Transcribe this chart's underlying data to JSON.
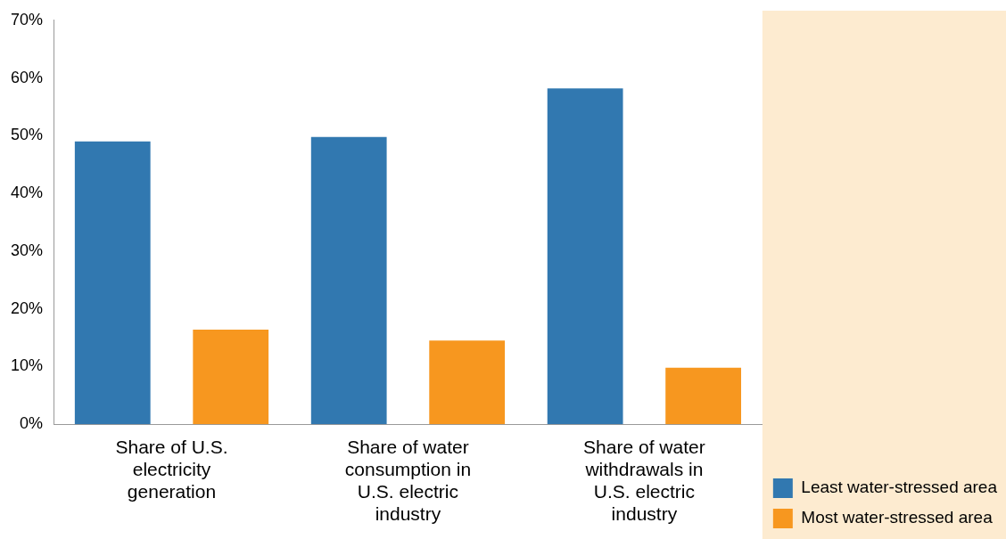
{
  "chart_data": {
    "type": "bar",
    "categories": [
      "Share of U.S. electricity generation",
      "Share of water consumption in U.S. electric industry",
      "Share of water withdrawals in U.S. electric industry"
    ],
    "series": [
      {
        "name": "Least water-stressed area",
        "color": "#3178b0",
        "values": [
          49,
          49.8,
          58.2
        ]
      },
      {
        "name": "Most water-stressed area",
        "color": "#f7971f",
        "values": [
          16.4,
          14.5,
          9.8
        ]
      }
    ],
    "ylim": [
      0,
      70
    ],
    "yticks": [
      {
        "value": 0,
        "label": "0%"
      },
      {
        "value": 10,
        "label": "10%"
      },
      {
        "value": 20,
        "label": "20%"
      },
      {
        "value": 30,
        "label": "30%"
      },
      {
        "value": 40,
        "label": "40%"
      },
      {
        "value": 50,
        "label": "50%"
      },
      {
        "value": 60,
        "label": "60%"
      },
      {
        "value": 70,
        "label": "70%"
      }
    ],
    "grid": false,
    "legend": "bottom right"
  }
}
